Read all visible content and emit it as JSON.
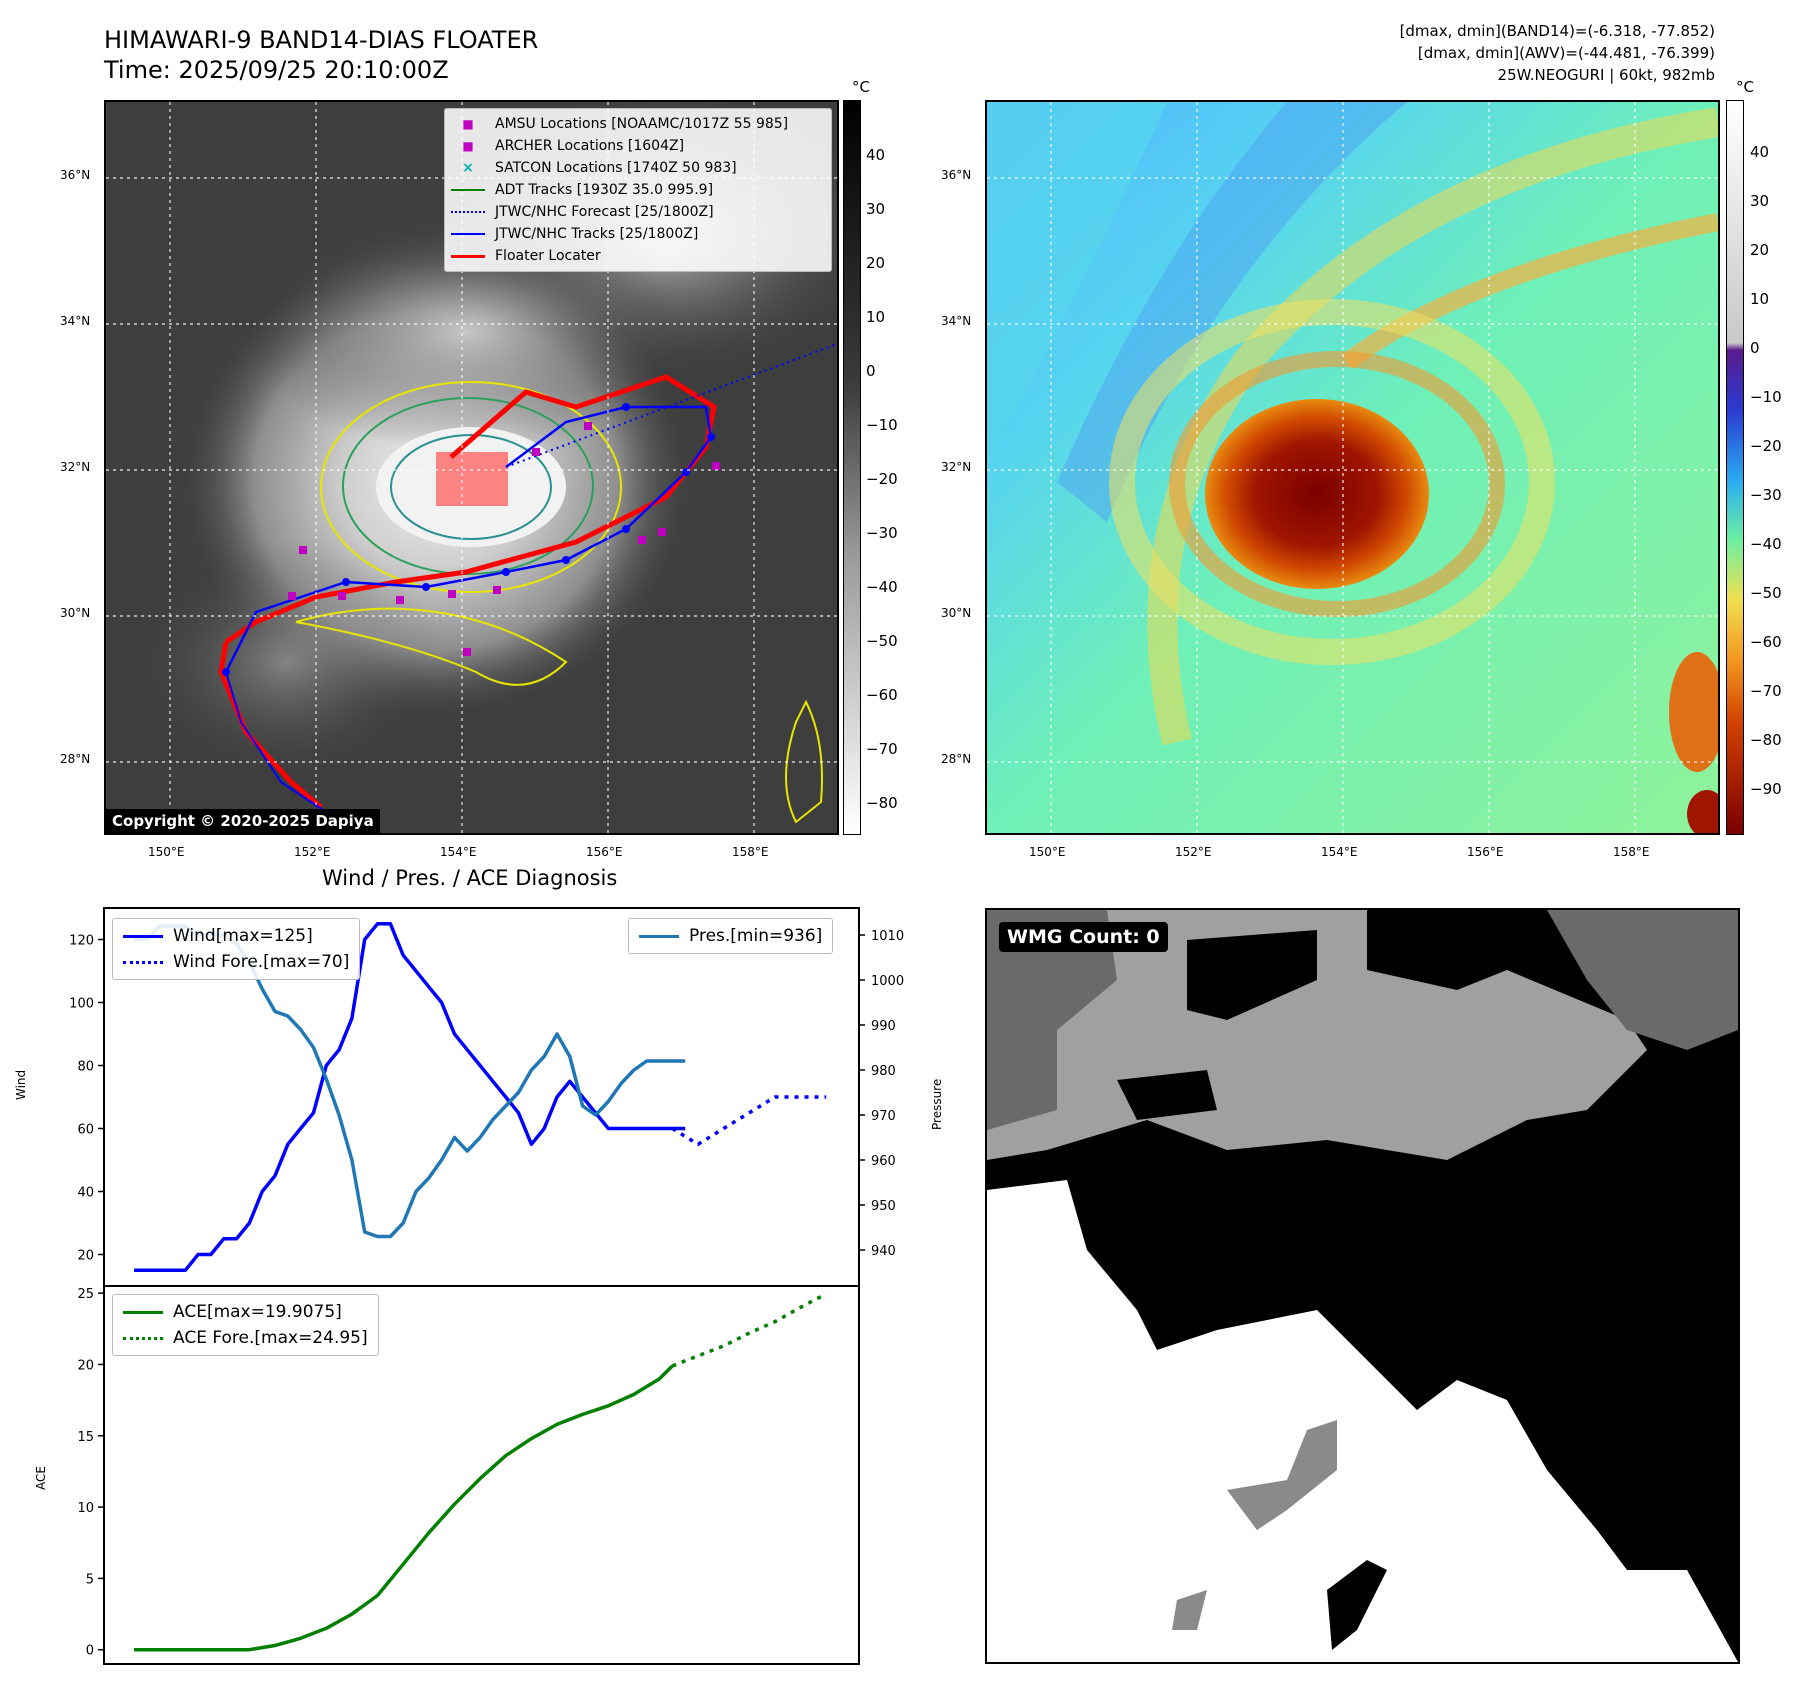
{
  "header": {
    "title": "HIMAWARI-9 BAND14-DIAS FLOATER",
    "time": "Time: 2025/09/25 20:10:00Z",
    "info_line1": "[dmax, dmin](BAND14)=(-6.318, -77.852)",
    "info_line2": "[dmax, dmin](AWV)=(-44.481, -76.399)",
    "info_line3": "25W.NEOGURI | 60kt, 982mb"
  },
  "map": {
    "lat_ticks": [
      "36°N",
      "34°N",
      "32°N",
      "30°N",
      "28°N"
    ],
    "lon_ticks": [
      "150°E",
      "152°E",
      "154°E",
      "156°E",
      "158°E"
    ],
    "copyright": "Copyright © 2020-2025 Dapiya",
    "legend": [
      {
        "label": "AMSU Locations [NOAAMC/1017Z 55 985]",
        "color": "#c000c0",
        "style": "square"
      },
      {
        "label": "ARCHER Locations [1604Z]",
        "color": "#c000c0",
        "style": "square"
      },
      {
        "label": "SATCON Locations [1740Z 50 983]",
        "color": "#00b0b0",
        "style": "x"
      },
      {
        "label": "ADT Tracks [1930Z 35.0 995.9]",
        "color": "#008000",
        "style": "line"
      },
      {
        "label": "JTWC/NHC Forecast [25/1800Z]",
        "color": "#0000ff",
        "style": "dotted"
      },
      {
        "label": "JTWC/NHC Tracks [25/1800Z]",
        "color": "#0000ff",
        "style": "line-dot"
      },
      {
        "label": "Floater Locater",
        "color": "#ff0000",
        "style": "line"
      }
    ]
  },
  "colorbar_gray": {
    "unit": "°C",
    "ticks": [
      "40",
      "30",
      "20",
      "10",
      "0",
      "−10",
      "−20",
      "−30",
      "−40",
      "−50",
      "−60",
      "−70",
      "−80"
    ]
  },
  "colorbar_color": {
    "unit": "°C",
    "ticks": [
      "40",
      "30",
      "20",
      "10",
      "0",
      "−10",
      "−20",
      "−30",
      "−40",
      "−50",
      "−60",
      "−70",
      "−80",
      "−90"
    ]
  },
  "diag": {
    "title": "Wind / Pres. / ACE Diagnosis",
    "wmg": "WMG Count: 0"
  },
  "chart_data": [
    {
      "type": "line",
      "title": "Wind / Pres. / ACE Diagnosis",
      "ylabel": "Wind",
      "ylabel_right": "Pressure",
      "ylim": [
        10,
        130
      ],
      "ylim_right": [
        932,
        1016
      ],
      "y_ticks": [
        "120",
        "100",
        "80",
        "60",
        "40",
        "20"
      ],
      "y_ticks_right": [
        "1010",
        "1000",
        "990",
        "980",
        "970",
        "960",
        "950",
        "940"
      ],
      "series": [
        {
          "name": "Wind[max=125]",
          "color": "#0000ff",
          "style": "solid",
          "x": [
            0,
            1,
            2,
            3,
            4,
            5,
            6,
            7,
            8,
            9,
            10,
            11,
            12,
            13,
            14,
            15,
            16,
            17,
            18,
            19,
            20,
            21,
            22,
            23,
            24,
            25,
            26,
            27,
            28,
            29,
            30,
            31,
            32,
            33,
            34,
            35,
            36,
            37,
            38,
            39,
            40,
            41,
            42,
            43
          ],
          "y": [
            15,
            15,
            15,
            15,
            15,
            20,
            20,
            25,
            25,
            30,
            40,
            45,
            55,
            60,
            65,
            80,
            85,
            95,
            120,
            125,
            125,
            115,
            110,
            105,
            100,
            90,
            85,
            80,
            75,
            70,
            65,
            55,
            60,
            70,
            75,
            70,
            65,
            60,
            60,
            60,
            60,
            60,
            60,
            60
          ]
        },
        {
          "name": "Wind Fore.[max=70]",
          "color": "#0000ff",
          "style": "dotted",
          "x": [
            42,
            44,
            46,
            48,
            50,
            52,
            54
          ],
          "y": [
            60,
            55,
            60,
            65,
            70,
            70,
            70
          ]
        },
        {
          "name": "Pres.[min=936]",
          "color": "#1f77b4",
          "style": "solid",
          "axis": "right",
          "x": [
            0,
            1,
            2,
            3,
            4,
            5,
            6,
            7,
            8,
            9,
            10,
            11,
            12,
            13,
            14,
            15,
            16,
            17,
            18,
            19,
            20,
            21,
            22,
            23,
            24,
            25,
            26,
            27,
            28,
            29,
            30,
            31,
            32,
            33,
            34,
            35,
            36,
            37,
            38,
            39,
            40,
            41,
            42,
            43
          ],
          "y": [
            1009,
            1009,
            1012,
            1012,
            1012,
            1010,
            1010,
            1010,
            1008,
            1004,
            998,
            993,
            992,
            989,
            985,
            978,
            970,
            960,
            944,
            943,
            943,
            946,
            953,
            956,
            960,
            965,
            962,
            965,
            969,
            972,
            975,
            980,
            983,
            988,
            983,
            972,
            970,
            973,
            977,
            980,
            982,
            982,
            982,
            982
          ]
        }
      ]
    },
    {
      "type": "line",
      "ylabel": "ACE",
      "ylim": [
        -1,
        25.5
      ],
      "y_ticks": [
        "25",
        "20",
        "15",
        "10",
        "5",
        "0"
      ],
      "series": [
        {
          "name": "ACE[max=19.9075]",
          "color": "#008000",
          "style": "solid",
          "x": [
            0,
            5,
            9,
            11,
            13,
            15,
            17,
            19,
            21,
            23,
            25,
            27,
            29,
            31,
            33,
            35,
            37,
            39,
            41,
            42
          ],
          "y": [
            0,
            0,
            0,
            0.3,
            0.8,
            1.5,
            2.5,
            3.8,
            6.0,
            8.2,
            10.2,
            12.0,
            13.6,
            14.8,
            15.8,
            16.5,
            17.1,
            17.9,
            19.0,
            19.9
          ]
        },
        {
          "name": "ACE Fore.[max=24.95]",
          "color": "#008000",
          "style": "dotted",
          "x": [
            42,
            44,
            46,
            48,
            50,
            52,
            54
          ],
          "y": [
            19.9,
            20.6,
            21.3,
            22.2,
            23.0,
            24.0,
            24.95
          ]
        }
      ]
    }
  ]
}
